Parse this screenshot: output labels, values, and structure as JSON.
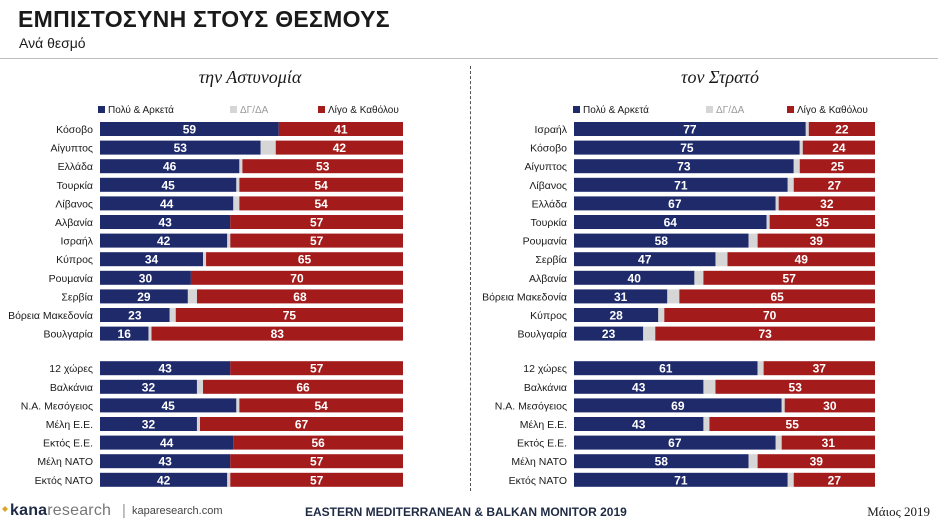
{
  "header": {
    "title": "ΕΜΠΙΣΤΟΣΥΝΗ ΣΤΟΥΣ ΘΕΣΜΟΥΣ",
    "subtitle": "Ανά θεσμό"
  },
  "colors": {
    "high": "#1f2a6b",
    "dk": "#d6d6d6",
    "low": "#a31b1b"
  },
  "chart_data": [
    {
      "type": "bar",
      "stacked": true,
      "orientation": "horizontal",
      "title": "την Αστυνομία",
      "legend": [
        "Πολύ & Αρκετά",
        "ΔΓ/ΔΑ",
        "Λίγο & Καθόλου"
      ],
      "legend_position": "top",
      "categories": [
        "Κόσοβο",
        "Αίγυπτος",
        "Ελλάδα",
        "Τουρκία",
        "Λίβανος",
        "Αλβανία",
        "Ισραήλ",
        "Κύπρος",
        "Ρουμανία",
        "Σερβία",
        "Βόρεια Μακεδονία",
        "Βουλγαρία",
        "12 χώρες",
        "Βαλκάνια",
        "Ν.Α. Μεσόγειος",
        "Μέλη Ε.Ε.",
        "Εκτός Ε.Ε.",
        "Μέλη ΝΑΤΟ",
        "Εκτός ΝΑΤΟ"
      ],
      "series": [
        {
          "name": "Πολύ & Αρκετά",
          "values": [
            59,
            53,
            46,
            45,
            44,
            43,
            42,
            34,
            30,
            29,
            23,
            16,
            43,
            32,
            45,
            32,
            44,
            43,
            42
          ]
        },
        {
          "name": "ΔΓ/ΔΑ",
          "values": [
            0,
            5,
            1,
            1,
            2,
            0,
            1,
            1,
            0,
            3,
            2,
            1,
            0,
            2,
            1,
            1,
            0,
            0,
            1
          ]
        },
        {
          "name": "Λίγο & Καθόλου",
          "values": [
            41,
            42,
            53,
            54,
            54,
            57,
            57,
            65,
            70,
            68,
            75,
            83,
            57,
            66,
            54,
            67,
            56,
            57,
            57
          ]
        }
      ],
      "xlim": [
        0,
        100
      ]
    },
    {
      "type": "bar",
      "stacked": true,
      "orientation": "horizontal",
      "title": "τον Στρατό",
      "legend": [
        "Πολύ & Αρκετά",
        "ΔΓ/ΔΑ",
        "Λίγο & Καθόλου"
      ],
      "legend_position": "top",
      "categories": [
        "Ισραήλ",
        "Κόσοβο",
        "Αίγυπτος",
        "Λίβανος",
        "Ελλάδα",
        "Τουρκία",
        "Ρουμανία",
        "Σερβία",
        "Αλβανία",
        "Βόρεια Μακεδονία",
        "Κύπρος",
        "Βουλγαρία",
        "12 χώρες",
        "Βαλκάνια",
        "Ν.Α. Μεσόγειος",
        "Μέλη Ε.Ε.",
        "Εκτός Ε.Ε.",
        "Μέλη ΝΑΤΟ",
        "Εκτός ΝΑΤΟ"
      ],
      "series": [
        {
          "name": "Πολύ & Αρκετά",
          "values": [
            77,
            75,
            73,
            71,
            67,
            64,
            58,
            47,
            40,
            31,
            28,
            23,
            61,
            43,
            69,
            43,
            67,
            58,
            71
          ]
        },
        {
          "name": "ΔΓ/ΔΑ",
          "values": [
            1,
            1,
            2,
            2,
            1,
            1,
            3,
            4,
            3,
            4,
            2,
            4,
            2,
            4,
            1,
            2,
            2,
            3,
            2
          ]
        },
        {
          "name": "Λίγο & Καθόλου",
          "values": [
            22,
            24,
            25,
            27,
            32,
            35,
            39,
            49,
            57,
            65,
            70,
            73,
            37,
            53,
            30,
            55,
            31,
            39,
            27
          ]
        }
      ],
      "xlim": [
        0,
        100
      ]
    }
  ],
  "footer": {
    "logo_main": "kana",
    "logo_rest": "research",
    "separator": "|",
    "site": "kaparesearch.com",
    "monitor": "EASTERN MEDITERRANEAN & BALKAN MONITOR 2019",
    "date": "Μάιος 2019"
  }
}
